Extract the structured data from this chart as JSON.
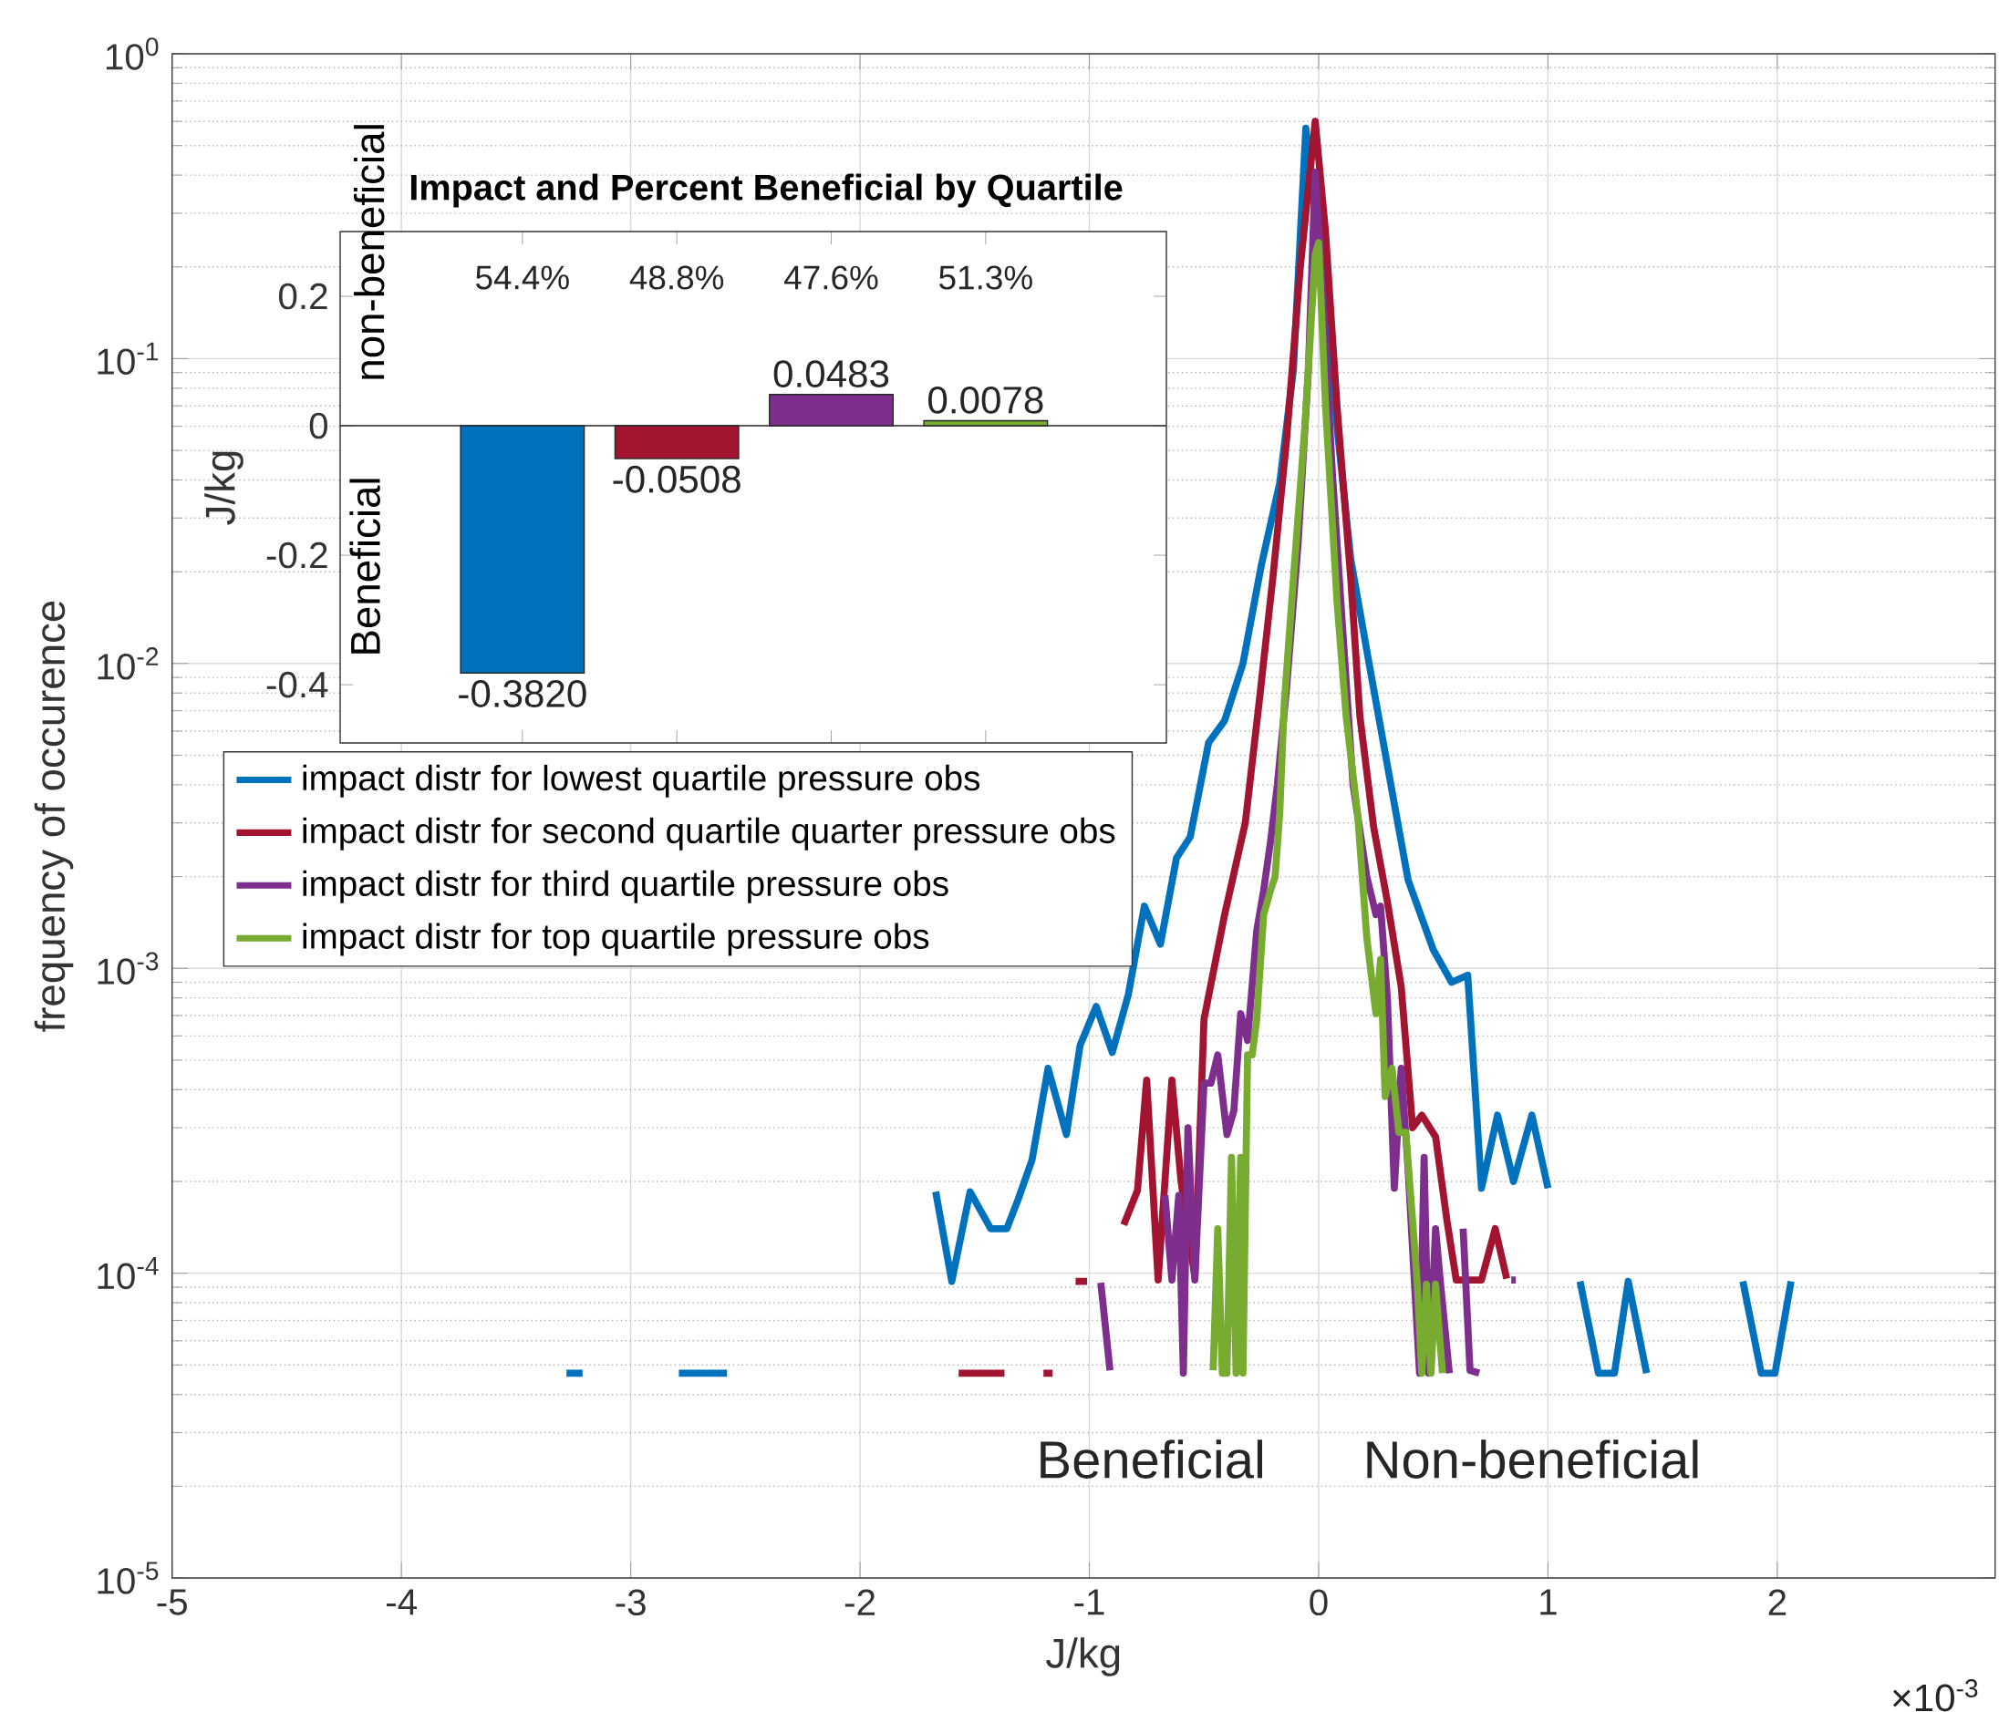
{
  "chart_data": [
    {
      "type": "line",
      "xlabel": "J/kg",
      "ylabel": "frequency of occurence",
      "log": "y",
      "grid": true,
      "legend": "left",
      "xlim": [
        -5,
        2.95
      ],
      "ylim": [
        1e-05,
        1
      ],
      "xticks": [
        -5,
        -4,
        -3,
        -2,
        -1,
        0,
        1,
        2
      ],
      "yticks": [
        {
          "value": 1e-05,
          "label": "10$^{-5}$"
        },
        {
          "value": 0.0001,
          "label": "10$^{-4}$"
        },
        {
          "value": 0.001,
          "label": "10$^{-3}$"
        },
        {
          "value": 0.01,
          "label": "10$^{-2}$"
        },
        {
          "value": 0.1,
          "label": "10$^{-1}$"
        },
        {
          "value": 1,
          "label": "10$^{0}$"
        }
      ],
      "annotations": [
        "Beneficial",
        "Non-beneficial",
        "×10$^{-3}$"
      ],
      "series": [
        {
          "name": "impact distr for lowest quartile pressure obs",
          "color": "#0072bd",
          "x": [
            -3.28,
            -3.21,
            -3.0,
            -2.79,
            -2.58,
            -2.0,
            -1.67,
            -1.6,
            -1.52,
            -1.43,
            -1.36,
            -1.31,
            -1.25,
            -1.18,
            -1.1,
            -1.04,
            -0.97,
            -0.9,
            -0.83,
            -0.76,
            -0.69,
            -0.62,
            -0.56,
            -0.48,
            -0.41,
            -0.33,
            -0.25,
            -0.17,
            -0.11,
            -0.056,
            0.028,
            0.083,
            0.14,
            0.22,
            0.31,
            0.39,
            0.5,
            0.58,
            0.65,
            0.71,
            0.78,
            0.85,
            0.93,
            1.0,
            1.07,
            1.14,
            1.22,
            1.29,
            1.35,
            1.43,
            1.6,
            1.85,
            1.93,
            1.99,
            2.06
          ],
          "values": [
            4.7e-05,
            4.7e-05,
            null,
            4.7e-05,
            4.7e-05,
            null,
            0.000185,
            9.4e-05,
            0.000185,
            0.00014,
            0.00014,
            0.000175,
            0.000235,
            0.00047,
            0.000285,
            0.00056,
            0.00075,
            0.00053,
            0.00082,
            0.0016,
            0.0012,
            0.0023,
            0.0027,
            0.0055,
            0.0065,
            0.01,
            0.021,
            0.039,
            0.092,
            0.57,
            0.164,
            0.057,
            0.022,
            0.01,
            0.0042,
            0.00195,
            0.00115,
            0.0009,
            0.00095,
            0.00019,
            0.00033,
            0.0002,
            0.00033,
            0.00019,
            null,
            9.4e-05,
            4.7e-05,
            4.7e-05,
            9.4e-05,
            4.7e-05,
            null,
            9.4e-05,
            4.7e-05,
            4.7e-05,
            9.4e-05
          ]
        },
        {
          "name": "impact distr for second quartile quarter pressure obs",
          "color": "#a2142f",
          "x": [
            -1.57,
            -1.37,
            -1.28,
            -1.2,
            -1.16,
            -1.1,
            -1.06,
            -1.01,
            -0.93,
            -0.85,
            -0.79,
            -0.75,
            -0.7,
            -0.64,
            -0.6,
            -0.54,
            -0.5,
            -0.41,
            -0.32,
            -0.26,
            -0.2,
            -0.14,
            -0.08,
            -0.015,
            0.03,
            0.08,
            0.14,
            0.18,
            0.24,
            0.3,
            0.36,
            0.41,
            0.45,
            0.51,
            0.56,
            0.6,
            0.71,
            0.77,
            0.82
          ],
          "values": [
            4.7e-05,
            4.7e-05,
            null,
            4.7e-05,
            4.7e-05,
            null,
            9.4e-05,
            9.4e-05,
            null,
            0.000144,
            0.000187,
            0.00043,
            9.5e-05,
            0.00043,
            0.0002,
            9.7e-05,
            0.00068,
            0.0015,
            0.003,
            0.0074,
            0.019,
            0.054,
            0.2,
            0.6,
            0.26,
            0.07,
            0.019,
            0.0067,
            0.0029,
            0.00165,
            0.00087,
            0.0003,
            0.00033,
            0.00028,
            0.000148,
            9.5e-05,
            9.5e-05,
            0.00014,
            9.6e-05
          ]
        },
        {
          "name": "impact distr for third quartile pressure obs",
          "color": "#7e2f8e",
          "x": [
            -0.95,
            -0.91,
            -0.8,
            -0.67,
            -0.64,
            -0.61,
            -0.59,
            -0.57,
            -0.54,
            -0.5,
            -0.47,
            -0.44,
            -0.4,
            -0.37,
            -0.34,
            -0.31,
            -0.27,
            -0.24,
            -0.21,
            -0.18,
            -0.14,
            -0.09,
            -0.045,
            -0.015,
            0.02,
            0.06,
            0.11,
            0.15,
            0.21,
            0.25,
            0.27,
            0.3,
            0.33,
            0.36,
            0.39,
            0.44,
            0.46,
            0.48,
            0.51,
            0.53,
            0.57,
            0.6,
            0.63,
            0.66,
            0.7,
            0.78,
            0.84,
            0.86
          ],
          "values": [
            9.3e-05,
            4.8e-05,
            null,
            0.00018,
            9.5e-05,
            0.00018,
            4.7e-05,
            0.0003,
            9.5e-05,
            0.00042,
            0.00042,
            0.00052,
            0.000285,
            0.00034,
            0.00071,
            0.00058,
            0.00133,
            0.0018,
            0.0026,
            0.004,
            0.0083,
            0.0245,
            0.091,
            0.41,
            0.15,
            0.042,
            0.0113,
            0.004,
            0.002,
            0.0015,
            0.0016,
            0.00079,
            0.00019,
            0.00047,
            0.00022,
            4.7e-05,
            0.00024,
            4.7e-05,
            0.00014,
            9.5e-05,
            4.7e-05,
            null,
            0.00014,
            4.8e-05,
            4.7e-05,
            null,
            9.5e-05,
            9.5e-05
          ]
        },
        {
          "name": "impact distr for top quartile pressure obs",
          "color": "#77ac30",
          "x": [
            -0.46,
            -0.44,
            -0.42,
            -0.4,
            -0.38,
            -0.36,
            -0.34,
            -0.33,
            -0.31,
            -0.29,
            -0.27,
            -0.24,
            -0.21,
            -0.19,
            -0.17,
            -0.15,
            -0.11,
            -0.06,
            -0.015,
            0,
            0.03,
            0.08,
            0.12,
            0.17,
            0.21,
            0.25,
            0.27,
            0.29,
            0.32,
            0.35,
            0.38,
            0.41,
            0.43,
            0.45,
            0.47,
            0.49,
            0.51,
            0.54
          ],
          "values": [
            4.8e-05,
            0.00014,
            4.7e-05,
            4.7e-05,
            0.00024,
            4.7e-05,
            0.00024,
            4.7e-05,
            0.00052,
            0.00052,
            0.00068,
            0.0015,
            0.0018,
            0.002,
            0.0032,
            0.0074,
            0.019,
            0.06,
            0.22,
            0.24,
            0.07,
            0.016,
            0.0067,
            0.0032,
            0.00126,
            0.00071,
            0.00107,
            0.00038,
            0.00047,
            0.00029,
            0.00029,
            0.000148,
            9.2e-05,
            4.7e-05,
            9.2e-05,
            4.7e-05,
            9.2e-05,
            4.7e-05
          ]
        }
      ]
    },
    {
      "type": "bar",
      "title": "Impact and Percent Beneficial by Quartile",
      "ylabel": "J/kg",
      "tick_labels": "y",
      "categories": [
        null,
        null,
        null,
        null
      ],
      "values": [
        -0.382,
        -0.0508,
        0.0483,
        0.0078
      ],
      "colors": [
        "#0072bd",
        "#a2142f",
        "#7e2f8e",
        "#77ac30"
      ],
      "value_labels": [
        "-0.3820",
        "-0.0508",
        "0.0483",
        "0.0078"
      ],
      "ylim": [
        -0.49,
        0.3
      ],
      "yticks": [
        -0.4,
        -0.2,
        0,
        0.2
      ],
      "annotations": [
        "54.4%",
        "48.8%",
        "47.6%",
        "51.3%",
        "non-beneficial",
        "Beneficial"
      ]
    }
  ]
}
